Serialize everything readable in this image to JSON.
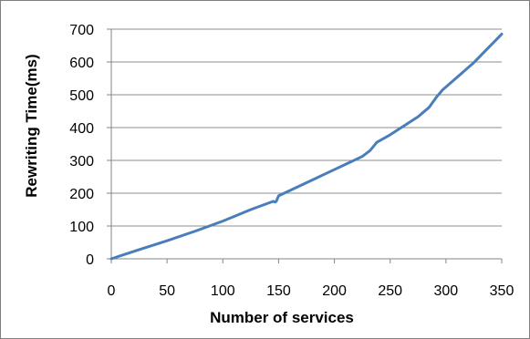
{
  "chart_data": {
    "type": "line",
    "title": "",
    "xlabel": "Number of services",
    "ylabel": "Rewriting Time(ms)",
    "xlim": [
      0,
      350
    ],
    "ylim": [
      0,
      700
    ],
    "x_ticks": [
      0,
      50,
      100,
      150,
      200,
      250,
      300,
      350
    ],
    "y_ticks": [
      0,
      100,
      200,
      300,
      400,
      500,
      600,
      700
    ],
    "grid": "horizontal",
    "legend": "none",
    "series": [
      {
        "color": "#4a7ebb",
        "points": [
          [
            0,
            0
          ],
          [
            25,
            28
          ],
          [
            50,
            55
          ],
          [
            75,
            84
          ],
          [
            100,
            115
          ],
          [
            125,
            150
          ],
          [
            145,
            175
          ],
          [
            147,
            173
          ],
          [
            148,
            176
          ],
          [
            150,
            192
          ],
          [
            175,
            232
          ],
          [
            200,
            272
          ],
          [
            225,
            312
          ],
          [
            232,
            330
          ],
          [
            238,
            355
          ],
          [
            250,
            378
          ],
          [
            275,
            433
          ],
          [
            285,
            462
          ],
          [
            292,
            495
          ],
          [
            297,
            515
          ],
          [
            325,
            598
          ],
          [
            350,
            685
          ]
        ]
      }
    ]
  }
}
